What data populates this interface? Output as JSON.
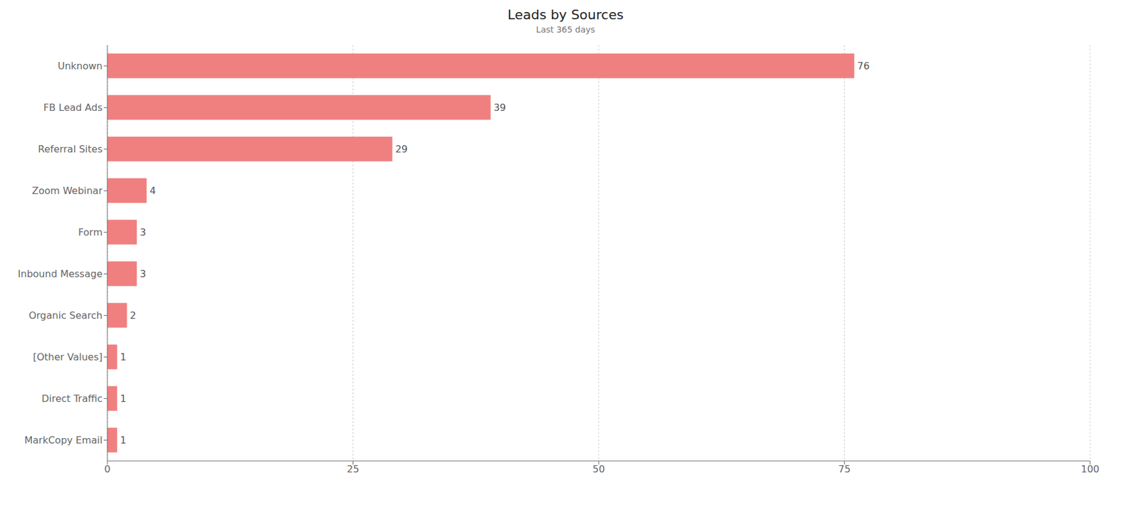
{
  "chart_data": {
    "type": "bar",
    "title": "Leads by Sources",
    "subtitle": "Last 365 days",
    "orientation": "horizontal",
    "categories": [
      "Unknown",
      "FB Lead Ads",
      "Referral Sites",
      "Zoom Webinar",
      "Form",
      "Inbound Message",
      "Organic Search",
      "[Other Values]",
      "Direct Traffic",
      "MarkCopy Email"
    ],
    "values": [
      76,
      39,
      29,
      4,
      3,
      3,
      2,
      1,
      1,
      1
    ],
    "color": "#f08080",
    "xlim": [
      0,
      100
    ],
    "xticks": [
      0,
      25,
      50,
      75,
      100
    ],
    "grid": true,
    "data_labels": true
  }
}
